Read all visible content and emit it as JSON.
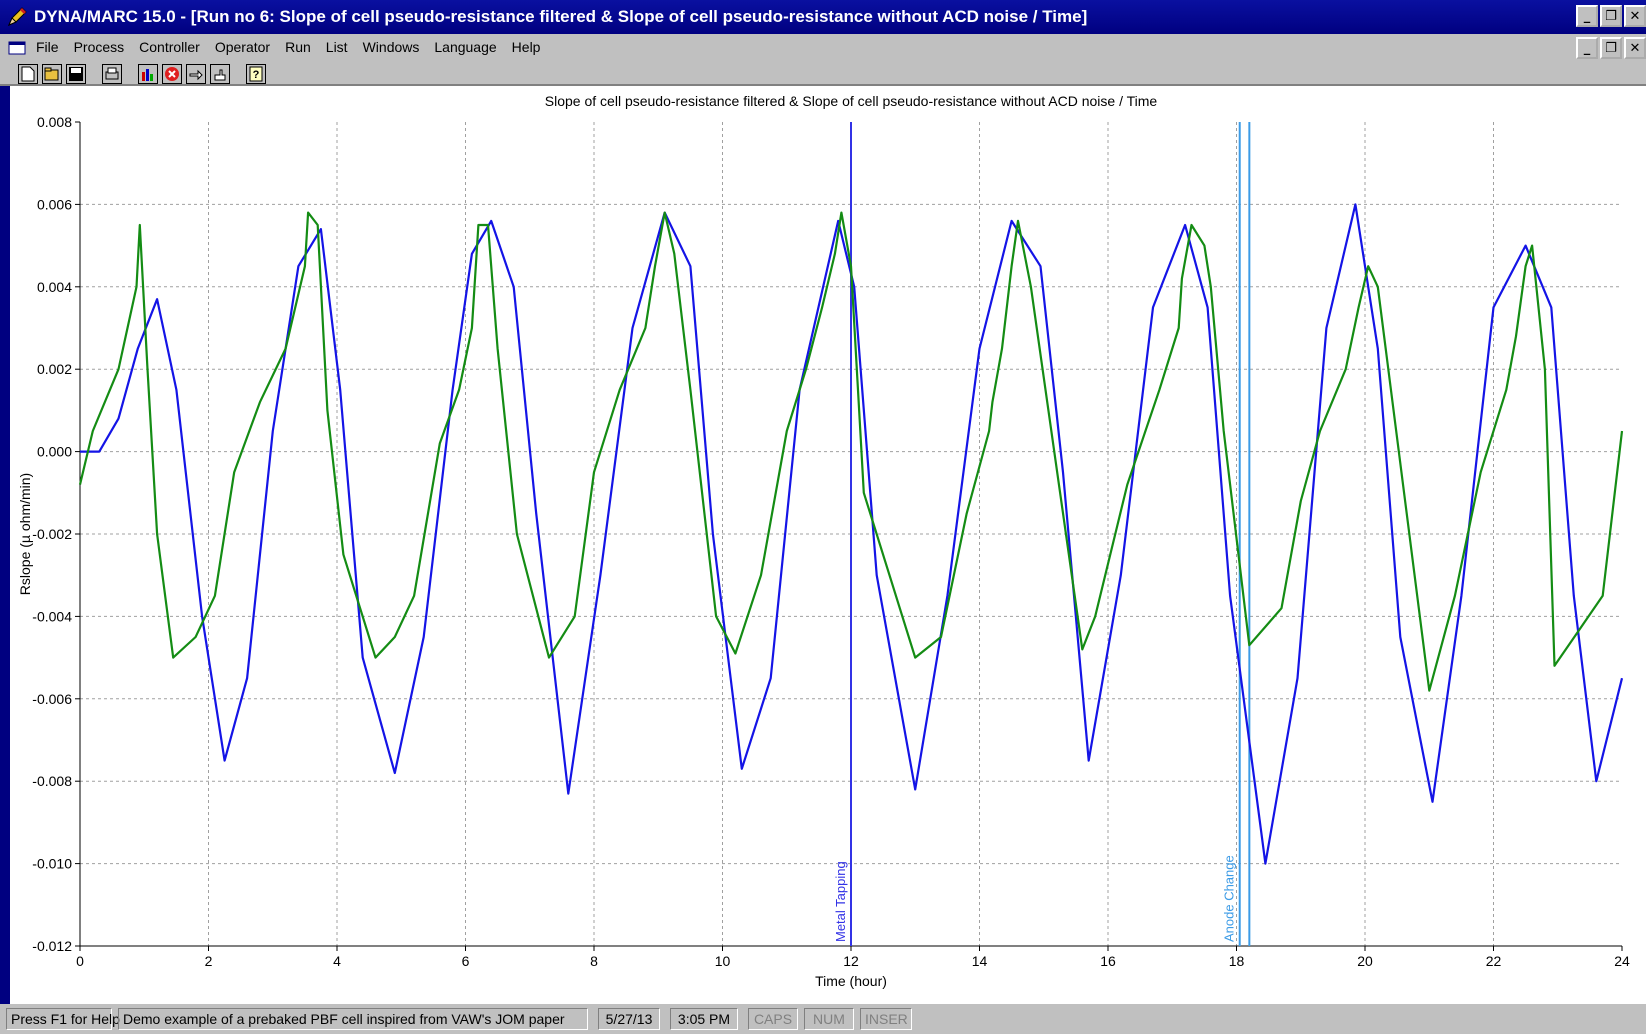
{
  "window": {
    "title": "DYNA/MARC 15.0 - [Run no 6: Slope of cell pseudo-resistance filtered & Slope of cell pseudo-resistance without ACD noise / Time]"
  },
  "menu": [
    "File",
    "Process",
    "Controller",
    "Operator",
    "Run",
    "List",
    "Windows",
    "Language",
    "Help"
  ],
  "toolbar": {
    "icons": [
      "new-icon",
      "open-icon",
      "save-icon",
      "print-icon",
      "chart-icon",
      "stop-icon",
      "pointer-icon",
      "hand-icon",
      "help-icon"
    ]
  },
  "status": {
    "help": "Press F1 for Help",
    "message": "Demo example of a prebaked PBF cell inspired from VAW's JOM paper",
    "date": "5/27/13",
    "time": "3:05 PM",
    "caps": "CAPS",
    "num": "NUM",
    "inser": "INSER"
  },
  "colors": {
    "series1": "#1414e6",
    "series2": "#148c14",
    "metal_tapping_line": "#3232e6",
    "anode_change_line": "#3c9be6",
    "title_bg": "#000080",
    "chrome": "#c0c0c0"
  },
  "chart_data": {
    "type": "line",
    "title": "Slope of cell pseudo-resistance filtered & Slope of cell pseudo-resistance without ACD noise / Time",
    "xlabel": "Time (hour)",
    "ylabel": "Rslope (µ ohm/min)",
    "xlim": [
      0,
      24
    ],
    "ylim": [
      -0.012,
      0.008
    ],
    "xticks": [
      "0",
      "2",
      "4",
      "6",
      "8",
      "10",
      "12",
      "14",
      "16",
      "18",
      "20",
      "22",
      "24"
    ],
    "yticks": [
      "0.008",
      "0.006",
      "0.004",
      "0.002",
      "0.000",
      "-0.002",
      "-0.004",
      "-0.006",
      "-0.008",
      "-0.010",
      "-0.012"
    ],
    "grid": true,
    "series": [
      {
        "color": "#1414e6",
        "x": [
          0,
          0.3,
          0.6,
          0.9,
          1.2,
          1.5,
          1.9,
          2.25,
          2.6,
          3.0,
          3.4,
          3.75,
          4.05,
          4.4,
          4.9,
          5.35,
          5.8,
          6.1,
          6.4,
          6.75,
          7.1,
          7.6,
          8.1,
          8.6,
          9.1,
          9.5,
          9.85,
          10.3,
          10.75,
          11.2,
          11.8,
          12.05,
          12.4,
          13.0,
          13.5,
          14.0,
          14.5,
          14.95,
          15.3,
          15.7,
          16.2,
          16.7,
          17.2,
          17.55,
          17.9,
          18.45,
          18.95,
          19.4,
          19.85,
          20.2,
          20.55,
          21.05,
          21.5,
          22.0,
          22.5,
          22.9,
          23.25,
          23.6,
          24.0
        ],
        "values": [
          0.0,
          0.0,
          0.0008,
          0.0025,
          0.0037,
          0.0015,
          -0.004,
          -0.0075,
          -0.0055,
          0.0005,
          0.0045,
          0.0054,
          0.0015,
          -0.005,
          -0.0078,
          -0.0045,
          0.0015,
          0.0048,
          0.0056,
          0.004,
          -0.0015,
          -0.0083,
          -0.003,
          0.003,
          0.0058,
          0.0045,
          -0.002,
          -0.0077,
          -0.0055,
          0.0015,
          0.0056,
          0.004,
          -0.003,
          -0.0082,
          -0.0035,
          0.0025,
          0.0056,
          0.0045,
          -0.0005,
          -0.0075,
          -0.003,
          0.0035,
          0.0055,
          0.0035,
          -0.0035,
          -0.01,
          -0.0055,
          0.003,
          0.006,
          0.0025,
          -0.0045,
          -0.0085,
          -0.0035,
          0.0035,
          0.005,
          0.0035,
          -0.0035,
          -0.008,
          -0.0055
        ]
      },
      {
        "color": "#148c14",
        "x": [
          0,
          0.2,
          0.6,
          0.88,
          0.93,
          1.05,
          1.2,
          1.45,
          1.8,
          2.1,
          2.4,
          2.8,
          3.2,
          3.5,
          3.55,
          3.7,
          3.85,
          4.1,
          4.6,
          4.9,
          5.2,
          5.6,
          5.9,
          6.1,
          6.2,
          6.35,
          6.5,
          6.8,
          7.3,
          7.7,
          8.0,
          8.4,
          8.8,
          8.95,
          9.1,
          9.25,
          9.5,
          9.9,
          10.2,
          10.6,
          11.0,
          11.3,
          11.55,
          11.75,
          11.85,
          12.0,
          12.2,
          13.0,
          13.4,
          13.8,
          14.15,
          14.2,
          14.35,
          14.5,
          14.6,
          14.8,
          15.6,
          15.8,
          16.3,
          16.8,
          17.1,
          17.15,
          17.3,
          17.5,
          17.6,
          17.8,
          18.2,
          18.7,
          19.0,
          19.3,
          19.7,
          19.9,
          20.05,
          20.2,
          21.0,
          21.4,
          21.8,
          22.2,
          22.35,
          22.5,
          22.6,
          22.8,
          22.95,
          23.7,
          24.0
        ],
        "values": [
          -0.0008,
          0.0005,
          0.002,
          0.004,
          0.0055,
          0.002,
          -0.002,
          -0.005,
          -0.0045,
          -0.0035,
          -0.0005,
          0.0012,
          0.0025,
          0.0045,
          0.0058,
          0.0055,
          0.001,
          -0.0025,
          -0.005,
          -0.0045,
          -0.0035,
          0.0002,
          0.0015,
          0.003,
          0.0055,
          0.0055,
          0.0025,
          -0.002,
          -0.005,
          -0.004,
          -0.0005,
          0.0015,
          0.003,
          0.0045,
          0.0058,
          0.0048,
          0.0015,
          -0.004,
          -0.0049,
          -0.003,
          0.0005,
          0.002,
          0.0035,
          0.0048,
          0.0058,
          0.0045,
          -0.001,
          -0.005,
          -0.0045,
          -0.0015,
          0.0005,
          0.0012,
          0.0025,
          0.0045,
          0.0056,
          0.004,
          -0.0048,
          -0.004,
          -0.0008,
          0.0015,
          0.003,
          0.0042,
          0.0055,
          0.005,
          0.004,
          0.0005,
          -0.0047,
          -0.0038,
          -0.0012,
          0.0005,
          0.002,
          0.0035,
          0.0045,
          0.004,
          -0.0058,
          -0.0035,
          -0.0005,
          0.0015,
          0.0028,
          0.0045,
          0.005,
          0.002,
          -0.0052,
          -0.0035,
          0.0005
        ]
      }
    ],
    "annotations": [
      {
        "label": "Metal Tapping",
        "x": 12.0,
        "color": "#3232e6"
      },
      {
        "label": "Anode Change",
        "x": 18.05,
        "color": "#3c9be6"
      },
      {
        "x": 18.2,
        "color": "#3c9be6"
      }
    ]
  }
}
